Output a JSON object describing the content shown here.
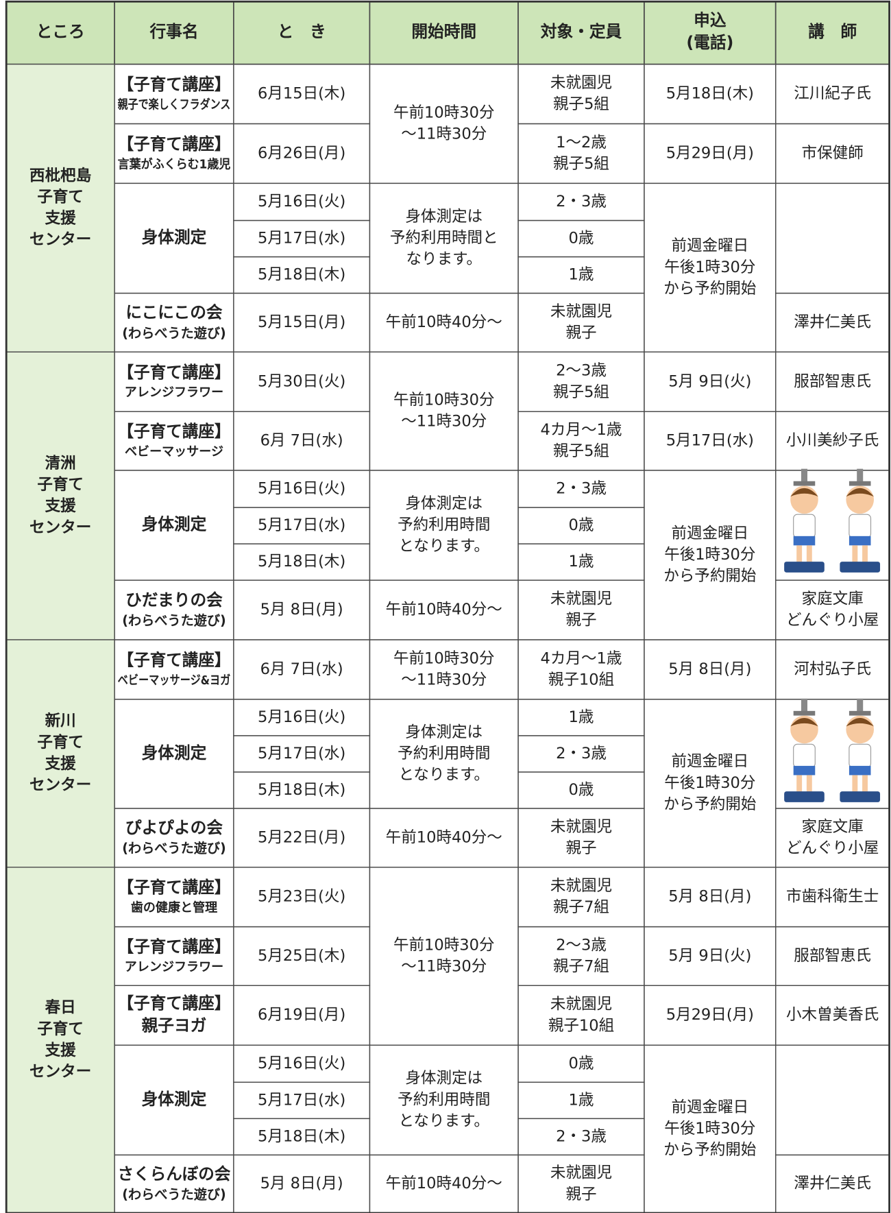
{
  "table": {
    "header": [
      [
        "ところ"
      ],
      [
        "行事名"
      ],
      [
        "と　き"
      ],
      [
        "開始時間"
      ],
      [
        "対象・定員"
      ],
      [
        "申込",
        "(電話)"
      ],
      [
        "講　師"
      ]
    ],
    "sections": [
      {
        "rows": [
          [
            [
              "西枇杷島",
              "子育て",
              "支援",
              "センター"
            ],
            {
              "tag": "【子育て講座】",
              "lines": [
                "親子で楽しくフラダンス"
              ]
            },
            [
              "6月15日(木)"
            ],
            [
              "午前10時30分",
              "～11時30分"
            ],
            [
              "未就園児",
              "親子5組"
            ],
            [
              "5月18日(木)"
            ],
            [
              "江川紀子氏"
            ]
          ],
          [
            null,
            {
              "tag": "【子育て講座】",
              "lines": [
                "言葉がふくらむ1歳児"
              ]
            },
            [
              "6月26日(月)"
            ],
            null,
            [
              "1～2歳",
              "親子5組"
            ],
            [
              "5月29日(月)"
            ],
            [
              "市保健師"
            ]
          ],
          [
            null,
            [
              "身体測定"
            ],
            [
              "5月16日(火)"
            ],
            [
              "身体測定は",
              "予約利用時間と",
              "なります。"
            ],
            [
              "2・3歳"
            ],
            [
              "前週金曜日",
              "午後1時30分",
              "から予約開始"
            ],
            []
          ],
          [
            null,
            null,
            [
              "5月17日(水)"
            ],
            null,
            [
              "0歳"
            ],
            null,
            null
          ],
          [
            null,
            null,
            [
              "5月18日(木)"
            ],
            null,
            [
              "1歳"
            ],
            null,
            null
          ],
          [
            null,
            [
              "にこにこの会",
              "(わらべうた遊び)"
            ],
            [
              "5月15日(月)"
            ],
            [
              "午前10時40分～"
            ],
            [
              "未就園児",
              "親子"
            ],
            null,
            [
              "澤井仁美氏"
            ]
          ]
        ]
      },
      {
        "rows": [
          [
            [
              "清洲",
              "子育て",
              "支援",
              "センター"
            ],
            {
              "tag": "【子育て講座】",
              "lines": [
                "アレンジフラワー"
              ]
            },
            [
              "5月30日(火)"
            ],
            [
              "午前10時30分",
              "～11時30分"
            ],
            [
              "2～3歳",
              "親子5組"
            ],
            [
              "5月 9日(火)"
            ],
            [
              "服部智恵氏"
            ]
          ],
          [
            null,
            {
              "tag": "【子育て講座】",
              "lines": [
                "ベビーマッサージ"
              ]
            },
            [
              "6月 7日(水)"
            ],
            null,
            [
              "4カ月～1歳",
              "親子5組"
            ],
            [
              "5月17日(水)"
            ],
            [
              "小川美紗子氏"
            ]
          ],
          [
            null,
            [
              "身体測定"
            ],
            [
              "5月16日(火)"
            ],
            [
              "身体測定は",
              "予約利用時間",
              "となります。"
            ],
            [
              "2・3歳"
            ],
            [
              "前週金曜日",
              "午後1時30分",
              "から予約開始"
            ],
            []
          ],
          [
            null,
            null,
            [
              "5月17日(水)"
            ],
            null,
            [
              "0歳"
            ],
            null,
            null
          ],
          [
            null,
            null,
            [
              "5月18日(木)"
            ],
            null,
            [
              "1歳"
            ],
            null,
            null
          ],
          [
            null,
            [
              "ひだまりの会",
              "(わらべうた遊び)"
            ],
            [
              "5月 8日(月)"
            ],
            [
              "午前10時40分～"
            ],
            [
              "未就園児",
              "親子"
            ],
            null,
            [
              "家庭文庫",
              "どんぐり小屋"
            ]
          ]
        ]
      },
      {
        "rows": [
          [
            [
              "新川",
              "子育て",
              "支援",
              "センター"
            ],
            {
              "tag": "【子育て講座】",
              "lines": [
                "ベビーマッサージ&ヨガ"
              ]
            },
            [
              "6月 7日(水)"
            ],
            [
              "午前10時30分",
              "～11時30分"
            ],
            [
              "4カ月～1歳",
              "親子10組"
            ],
            [
              "5月 8日(月)"
            ],
            [
              "河村弘子氏"
            ]
          ],
          [
            null,
            [
              "身体測定"
            ],
            [
              "5月16日(火)"
            ],
            [
              "身体測定は",
              "予約利用時間",
              "となります。"
            ],
            [
              "1歳"
            ],
            [
              "前週金曜日",
              "午後1時30分",
              "から予約開始"
            ],
            []
          ],
          [
            null,
            null,
            [
              "5月17日(水)"
            ],
            null,
            [
              "2・3歳"
            ],
            null,
            null
          ],
          [
            null,
            null,
            [
              "5月18日(木)"
            ],
            null,
            [
              "0歳"
            ],
            null,
            null
          ],
          [
            null,
            [
              "ぴよぴよの会",
              "(わらべうた遊び)"
            ],
            [
              "5月22日(月)"
            ],
            [
              "午前10時40分～"
            ],
            [
              "未就園児",
              "親子"
            ],
            null,
            [
              "家庭文庫",
              "どんぐり小屋"
            ]
          ]
        ]
      },
      {
        "rows": [
          [
            [
              "春日",
              "子育て",
              "支援",
              "センター"
            ],
            {
              "tag": "【子育て講座】",
              "lines": [
                "歯の健康と管理"
              ]
            },
            [
              "5月23日(火)"
            ],
            [
              "午前10時30分",
              "～11時30分"
            ],
            [
              "未就園児",
              "親子7組"
            ],
            [
              "5月 8日(月)"
            ],
            [
              "市歯科衛生士"
            ]
          ],
          [
            null,
            {
              "tag": "【子育て講座】",
              "lines": [
                "アレンジフラワー"
              ]
            },
            [
              "5月25日(木)"
            ],
            null,
            [
              "2～3歳",
              "親子7組"
            ],
            [
              "5月 9日(火)"
            ],
            [
              "服部智恵氏"
            ]
          ],
          [
            null,
            {
              "tag": "【子育て講座】",
              "lines": [
                "親子ヨガ"
              ]
            },
            [
              "6月19日(月)"
            ],
            null,
            [
              "未就園児",
              "親子10組"
            ],
            [
              "5月29日(月)"
            ],
            [
              "小木曽美香氏"
            ]
          ],
          [
            null,
            [
              "身体測定"
            ],
            [
              "5月16日(火)"
            ],
            [
              "身体測定は",
              "予約利用時間",
              "となります。"
            ],
            [
              "0歳"
            ],
            [
              "前週金曜日",
              "午後1時30分",
              "から予約開始"
            ],
            []
          ],
          [
            null,
            null,
            [
              "5月17日(水)"
            ],
            null,
            [
              "1歳"
            ],
            null,
            null
          ],
          [
            null,
            null,
            [
              "5月18日(木)"
            ],
            null,
            [
              "2・3歳"
            ],
            null,
            null
          ],
          [
            null,
            [
              "さくらんぼの会",
              "(わらべうた遊び)"
            ],
            [
              "5月 8日(月)"
            ],
            [
              "午前10時40分～"
            ],
            [
              "未就園児",
              "親子"
            ],
            null,
            [
              "澤井仁美氏"
            ]
          ]
        ]
      }
    ]
  }
}
